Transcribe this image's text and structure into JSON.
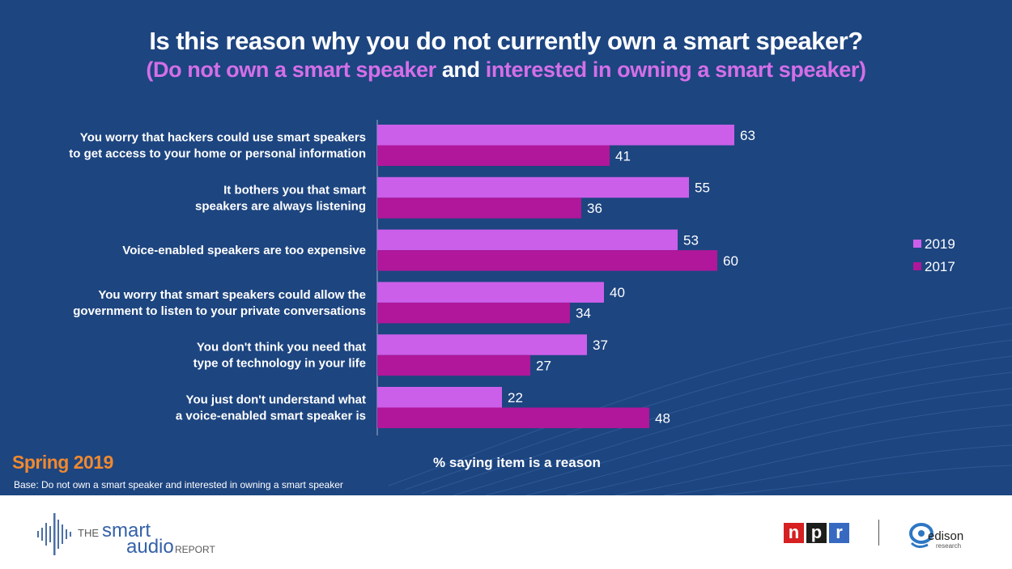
{
  "title": "Is this reason why you do not currently own a smart speaker?",
  "subtitle": {
    "open": "(",
    "part1": "Do not own a smart speaker",
    "middle": "and",
    "part2": "interested in owning a smart speaker",
    "close": ")"
  },
  "season": "Spring 2019",
  "base_note": "Base: Do not own a smart speaker and interested in owning a smart speaker",
  "colors": {
    "background": "#1d4580",
    "series_2019": "#cc5fea",
    "series_2017": "#b0179a",
    "season_text": "#f0892f",
    "subtitle_accent": "#d46fe8"
  },
  "chart_data": {
    "type": "bar",
    "orientation": "horizontal",
    "categories": [
      [
        "You worry that hackers could use smart speakers",
        "to get access to your home or personal information"
      ],
      [
        "It bothers you that smart",
        "speakers are always listening"
      ],
      [
        "Voice-enabled speakers are too expensive"
      ],
      [
        "You worry that smart speakers could allow the",
        "government to listen to your private conversations"
      ],
      [
        "You don't think you need that",
        "type of technology in your life"
      ],
      [
        "You just don't understand what",
        "a voice-enabled smart speaker is"
      ]
    ],
    "series": [
      {
        "name": "2019",
        "values": [
          63,
          55,
          53,
          40,
          37,
          22
        ]
      },
      {
        "name": "2017",
        "values": [
          41,
          36,
          60,
          34,
          27,
          48
        ]
      }
    ],
    "xlabel": "% saying item is a reason",
    "xlim": [
      0,
      100
    ],
    "grid": false,
    "legend_position": "right"
  },
  "footer": {
    "sar_logo": {
      "line1": "THE",
      "line2": "smart",
      "line3": "audio",
      "line4": "REPORT"
    },
    "npr_logo": [
      "n",
      "p",
      "r"
    ],
    "npr_colors": [
      "#d62021",
      "#1d1d1b",
      "#3769c1"
    ],
    "edison_logo": {
      "name": "edison",
      "tag": "research"
    }
  }
}
